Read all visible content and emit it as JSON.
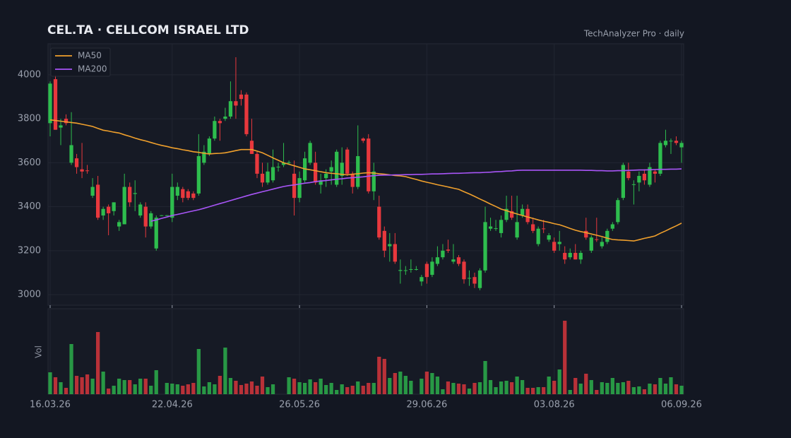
{
  "chart_data": {
    "type": "candlestick",
    "title": "CEL.TA  ·  CELLCOM ISRAEL LTD",
    "subtitle": "TechAnalyzer Pro · daily",
    "categories": [
      "16.03.26",
      null,
      null,
      null,
      null,
      null,
      null,
      null,
      null,
      null,
      null,
      null,
      null,
      null,
      null,
      null,
      null,
      null,
      null,
      null,
      null,
      null,
      null,
      "22.04.26",
      null,
      null,
      null,
      null,
      null,
      null,
      null,
      null,
      null,
      null,
      null,
      null,
      null,
      null,
      null,
      null,
      null,
      null,
      null,
      null,
      null,
      null,
      null,
      "26.05.26",
      null,
      null,
      null,
      null,
      null,
      null,
      null,
      null,
      null,
      null,
      null,
      null,
      null,
      null,
      null,
      null,
      null,
      null,
      null,
      null,
      null,
      null,
      null,
      "29.06.26",
      null,
      null,
      null,
      null,
      null,
      null,
      null,
      null,
      null,
      null,
      null,
      null,
      null,
      null,
      null,
      null,
      null,
      null,
      null,
      null,
      null,
      null,
      null,
      "03.08.26",
      null,
      null,
      null,
      null,
      null,
      null,
      null,
      null,
      null,
      null,
      null,
      null,
      null,
      null,
      null,
      null,
      null,
      null,
      null,
      null,
      null,
      null,
      null,
      "06.09.26"
    ],
    "open": [
      3780,
      3980,
      3760,
      3800,
      3600,
      3620,
      3570,
      3565,
      3450,
      3500,
      3360,
      3400,
      3380,
      3310,
      3320,
      3490,
      3458,
      3360,
      3400,
      3310,
      3210,
      3360,
      3360,
      3350,
      3450,
      3480,
      3470,
      3460,
      3460,
      3600,
      3640,
      3710,
      3790,
      3800,
      3810,
      3880,
      3910,
      3910,
      3700,
      3640,
      3550,
      3510,
      3520,
      3580,
      3590,
      3600,
      3550,
      3440,
      3520,
      3600,
      3600,
      3500,
      3530,
      3560,
      3500,
      3540,
      3660,
      3550,
      3490,
      3710,
      3710,
      3470,
      3400,
      3290,
      3220,
      3230,
      3108,
      3110,
      3115,
      3114,
      3060,
      3140,
      3090,
      3140,
      3170,
      3205,
      3150,
      3170,
      3150,
      3074,
      3080,
      3030,
      3110,
      3300,
      3300,
      3280,
      3340,
      3380,
      3260,
      3360,
      3390,
      3320,
      3230,
      3301,
      3250,
      3240,
      3230,
      3190,
      3170,
      3190,
      3160,
      3290,
      3200,
      3252,
      3220,
      3240,
      3300,
      3330,
      3440,
      3560,
      3500,
      3510,
      3550,
      3500,
      3560,
      3550,
      3680,
      3698,
      3700,
      3670
    ],
    "high": [
      3970,
      4000,
      3800,
      3820,
      3830,
      3640,
      3690,
      3590,
      3530,
      3540,
      3400,
      3410,
      3420,
      3340,
      3550,
      3510,
      3520,
      3420,
      3420,
      3380,
      3360,
      3362,
      3362,
      3550,
      3510,
      3490,
      3480,
      3470,
      3730,
      3680,
      3720,
      3810,
      3800,
      3850,
      3970,
      4080,
      3930,
      3920,
      3800,
      3650,
      3600,
      3600,
      3660,
      3600,
      3690,
      3610,
      3610,
      3560,
      3650,
      3700,
      3650,
      3550,
      3570,
      3610,
      3660,
      3670,
      3670,
      3560,
      3770,
      3715,
      3730,
      3600,
      3450,
      3310,
      3280,
      3280,
      3160,
      3130,
      3160,
      3130,
      3090,
      3150,
      3170,
      3220,
      3230,
      3250,
      3230,
      3180,
      3160,
      3110,
      3100,
      3120,
      3400,
      3350,
      3340,
      3360,
      3450,
      3450,
      3450,
      3410,
      3410,
      3350,
      3310,
      3340,
      3280,
      3260,
      3290,
      3220,
      3210,
      3230,
      3200,
      3350,
      3270,
      3350,
      3260,
      3300,
      3330,
      3440,
      3600,
      3600,
      3520,
      3560,
      3570,
      3600,
      3570,
      3700,
      3750,
      3710,
      3720,
      3700
    ],
    "low": [
      3720,
      3750,
      3680,
      3770,
      3590,
      3550,
      3530,
      3550,
      3440,
      3340,
      3340,
      3270,
      3360,
      3290,
      3320,
      3400,
      3380,
      3350,
      3260,
      3300,
      3200,
      3358,
      3358,
      3330,
      3430,
      3420,
      3430,
      3430,
      3450,
      3590,
      3630,
      3700,
      3700,
      3790,
      3800,
      3800,
      3860,
      3720,
      3640,
      3530,
      3490,
      3500,
      3510,
      3560,
      3580,
      3590,
      3360,
      3420,
      3510,
      3590,
      3500,
      3460,
      3490,
      3500,
      3490,
      3500,
      3540,
      3460,
      3480,
      3690,
      3460,
      3430,
      3250,
      3170,
      3150,
      3140,
      3050,
      3090,
      3100,
      3110,
      3040,
      3050,
      3080,
      3130,
      3160,
      3190,
      3140,
      3130,
      3050,
      3040,
      3030,
      3020,
      3100,
      3290,
      3290,
      3260,
      3330,
      3340,
      3250,
      3350,
      3320,
      3280,
      3220,
      3280,
      3240,
      3190,
      3200,
      3140,
      3160,
      3160,
      3140,
      3250,
      3190,
      3240,
      3210,
      3230,
      3290,
      3320,
      3430,
      3520,
      3410,
      3470,
      3500,
      3490,
      3510,
      3540,
      3670,
      3640,
      3680,
      3600
    ],
    "close": [
      3960,
      3750,
      3770,
      3780,
      3680,
      3580,
      3560,
      3562,
      3490,
      3350,
      3390,
      3370,
      3420,
      3330,
      3490,
      3420,
      3462,
      3410,
      3310,
      3370,
      3350,
      3361,
      3361,
      3490,
      3490,
      3440,
      3440,
      3440,
      3630,
      3650,
      3710,
      3790,
      3780,
      3810,
      3880,
      3860,
      3890,
      3730,
      3640,
      3550,
      3510,
      3560,
      3580,
      3582,
      3600,
      3602,
      3440,
      3530,
      3620,
      3690,
      3510,
      3520,
      3550,
      3580,
      3650,
      3600,
      3550,
      3490,
      3630,
      3700,
      3470,
      3560,
      3260,
      3200,
      3230,
      3150,
      3112,
      3111,
      3116,
      3116,
      3080,
      3080,
      3150,
      3170,
      3200,
      3200,
      3160,
      3140,
      3070,
      3076,
      3050,
      3110,
      3330,
      3310,
      3302,
      3340,
      3390,
      3350,
      3330,
      3390,
      3330,
      3290,
      3300,
      3300,
      3270,
      3200,
      3240,
      3160,
      3190,
      3160,
      3190,
      3260,
      3260,
      3250,
      3240,
      3290,
      3320,
      3430,
      3590,
      3530,
      3502,
      3540,
      3520,
      3580,
      3550,
      3690,
      3700,
      3700,
      3690,
      3690
    ],
    "up_color": "#2ebd4e",
    "down_color": "#e8383d",
    "ylim": [
      2952,
      4141
    ],
    "yticks": [
      3000,
      3200,
      3400,
      3600,
      3800,
      4000
    ],
    "grid": true,
    "legend": "upper left",
    "series": [
      {
        "name": "MA50",
        "color": "#f0a02c",
        "values": [
          3795,
          3792,
          3789,
          3786,
          3783,
          3780,
          3775,
          3770,
          3765,
          3756,
          3748,
          3744,
          3739,
          3735,
          3727,
          3720,
          3712,
          3705,
          3699,
          3692,
          3685,
          3679,
          3674,
          3668,
          3664,
          3659,
          3655,
          3650,
          3647,
          3643,
          3640,
          3642,
          3643,
          3645,
          3650,
          3655,
          3660,
          3660,
          3660,
          3653,
          3645,
          3634,
          3622,
          3611,
          3600,
          3593,
          3586,
          3579,
          3572,
          3568,
          3564,
          3559,
          3555,
          3552,
          3550,
          3547,
          3545,
          3548,
          3550,
          3553,
          3555,
          3553,
          3550,
          3548,
          3545,
          3542,
          3540,
          3537,
          3530,
          3524,
          3517,
          3511,
          3506,
          3500,
          3495,
          3490,
          3484,
          3479,
          3468,
          3458,
          3447,
          3435,
          3424,
          3412,
          3401,
          3389,
          3382,
          3374,
          3367,
          3360,
          3353,
          3347,
          3340,
          3334,
          3329,
          3323,
          3318,
          3310,
          3301,
          3293,
          3287,
          3282,
          3276,
          3270,
          3264,
          3257,
          3251,
          3249,
          3248,
          3246,
          3244,
          3250,
          3256,
          3261,
          3267,
          3279,
          3290,
          3302,
          3313,
          3325
        ]
      },
      {
        "name": "MA200",
        "color": "#a855f7",
        "values": [
          null,
          null,
          null,
          null,
          null,
          null,
          null,
          null,
          null,
          null,
          null,
          null,
          null,
          null,
          null,
          null,
          null,
          null,
          null,
          3334,
          3340,
          3347,
          3353,
          3360,
          3365,
          3370,
          3376,
          3381,
          3386,
          3393,
          3400,
          3407,
          3414,
          3421,
          3428,
          3435,
          3442,
          3449,
          3456,
          3462,
          3468,
          3474,
          3480,
          3486,
          3492,
          3496,
          3499,
          3503,
          3507,
          3510,
          3514,
          3517,
          3519,
          3522,
          3525,
          3527,
          3530,
          3532,
          3534,
          3536,
          3539,
          3541,
          3543,
          3544,
          3544,
          3545,
          3545,
          3546,
          3546,
          3547,
          3547,
          3548,
          3549,
          3549,
          3550,
          3551,
          3552,
          3552,
          3553,
          3554,
          3555,
          3555,
          3556,
          3557,
          3559,
          3560,
          3562,
          3563,
          3565,
          3566,
          3566,
          3566,
          3566,
          3566,
          3566,
          3566,
          3566,
          3566,
          3566,
          3566,
          3566,
          3565,
          3565,
          3564,
          3564,
          3563,
          3563,
          3564,
          3564,
          3565,
          3566,
          3567,
          3567,
          3568,
          3569,
          3570,
          3570,
          3571,
          3571,
          3572
        ]
      }
    ],
    "volume": {
      "label": "Vol",
      "ylim": [
        0,
        121
      ],
      "values": [
        31,
        24,
        17,
        9,
        71,
        26,
        24,
        28,
        22,
        88,
        32,
        8,
        12,
        22,
        20,
        20,
        14,
        22,
        22,
        12,
        34,
        0,
        16,
        15,
        14,
        12,
        14,
        16,
        64,
        11,
        17,
        14,
        26,
        66,
        23,
        19,
        13,
        15,
        18,
        12,
        25,
        10,
        14,
        0,
        0,
        24,
        22,
        17,
        16,
        21,
        17,
        22,
        13,
        16,
        6,
        14,
        10,
        12,
        18,
        12,
        16,
        16,
        53,
        50,
        23,
        30,
        32,
        26,
        19,
        0,
        22,
        32,
        30,
        25,
        7,
        18,
        16,
        15,
        14,
        8,
        16,
        17,
        47,
        20,
        10,
        18,
        19,
        17,
        25,
        20,
        9,
        9,
        10,
        10,
        25,
        19,
        35,
        104,
        6,
        23,
        15,
        29,
        20,
        6,
        17,
        16,
        23,
        16,
        17,
        19,
        10,
        11,
        7,
        15,
        14,
        23,
        15,
        24,
        14,
        12
      ]
    }
  }
}
